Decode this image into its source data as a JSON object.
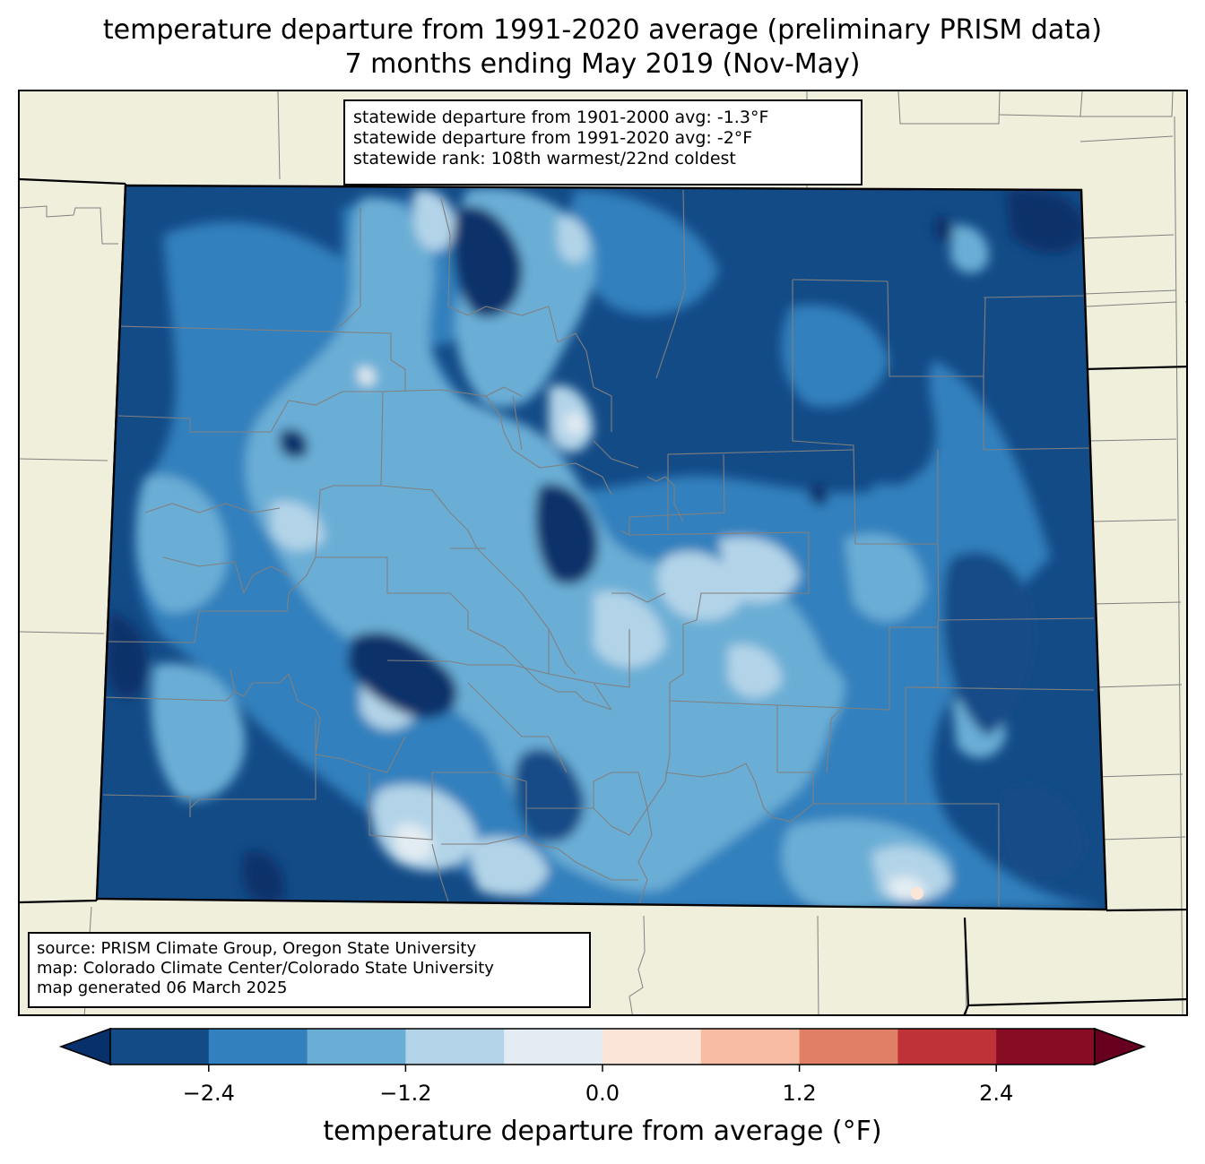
{
  "title": {
    "line1": "temperature departure from 1991-2020 average (preliminary PRISM data)",
    "line2": "7 months ending May 2019 (Nov-May)"
  },
  "stats": {
    "line1": "statewide departure from 1901-2000 avg: -1.3°F",
    "line2": "statewide departure from 1991-2020 avg: -2°F",
    "line3": "statewide rank: 108th warmest/22nd coldest"
  },
  "source": {
    "line1": "source: PRISM Climate Group, Oregon State University",
    "line2": "map: Colorado Climate Center/Colorado State University",
    "line3": "map generated 06 March 2025"
  },
  "colorbar": {
    "label": "temperature departure from average (°F)",
    "min": -3.0,
    "max": 3.0,
    "step": 0.6,
    "extend": "both",
    "ticks": [
      "−2.4",
      "−1.2",
      "0.0",
      "1.2",
      "2.4"
    ],
    "tick_values": [
      -2.4,
      -1.2,
      0.0,
      1.2,
      2.4
    ],
    "colors": [
      "#08306b",
      "#134b87",
      "#3280bd",
      "#6aaed6",
      "#b3d4e8",
      "#e3ecf2",
      "#fbe5d8",
      "#f8bca2",
      "#e07f66",
      "#bf3338",
      "#870c23",
      "#67001f"
    ]
  },
  "map": {
    "land_color": "#f0efdc",
    "state_border_color": "#000000",
    "county_line_color": "#808080"
  }
}
